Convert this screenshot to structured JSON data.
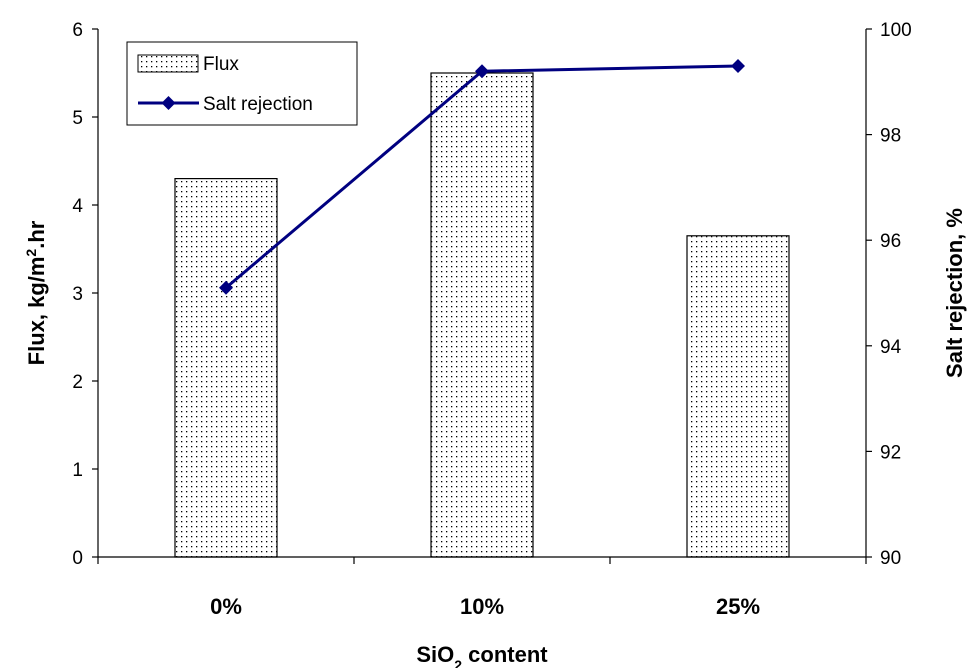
{
  "chart_data": {
    "type": "bar",
    "categories": [
      "0%",
      "10%",
      "25%"
    ],
    "series": [
      {
        "name": "Flux",
        "type": "bar",
        "axis": "left",
        "values": [
          4.3,
          5.5,
          3.65
        ]
      },
      {
        "name": "Salt rejection",
        "type": "line",
        "axis": "right",
        "values": [
          95.1,
          99.2,
          99.3
        ]
      }
    ],
    "y_left": {
      "label_parts": {
        "main": "Flux, kg/m",
        "sup": "2",
        "rest": ".hr"
      },
      "ylim": [
        0,
        6
      ],
      "ticks": [
        "0",
        "1",
        "2",
        "3",
        "4",
        "5",
        "6"
      ]
    },
    "y_right": {
      "label": "Salt rejection, %",
      "ylim": [
        90,
        100
      ],
      "ticks": [
        "90",
        "92",
        "94",
        "96",
        "98",
        "100"
      ]
    },
    "xlabel_parts": {
      "main": "SiO",
      "sub": "2",
      "rest": " content"
    },
    "grid": false,
    "legend_position": "top-left",
    "colors": {
      "bar_fill": "#ffffff",
      "bar_dots": "#000000",
      "line": "#000080"
    }
  }
}
